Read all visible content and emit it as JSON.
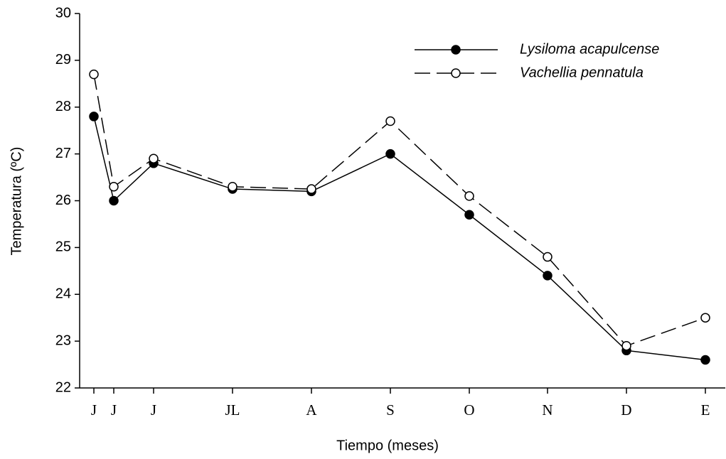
{
  "chart_data": {
    "type": "line",
    "x_label": "Tiempo (meses)",
    "y_label": "Temperatura (ºC)",
    "categories": [
      "J",
      "J",
      "J",
      "JL",
      "A",
      "S",
      "O",
      "N",
      "D",
      "E"
    ],
    "series": [
      {
        "name": "Lysiloma acapulcense",
        "color": "#000000",
        "marker_fill": "#000000",
        "dash": false,
        "values": [
          27.8,
          26.0,
          26.8,
          26.25,
          26.2,
          27.0,
          25.7,
          24.4,
          22.8,
          22.6
        ]
      },
      {
        "name": "Vachellia pennatula",
        "color": "#000000",
        "marker_fill": "#ffffff",
        "dash": true,
        "values": [
          28.7,
          26.3,
          26.9,
          26.3,
          26.25,
          27.7,
          26.1,
          24.8,
          22.9,
          23.5
        ]
      }
    ],
    "ylim": [
      22,
      30
    ],
    "yticks": [
      22,
      23,
      24,
      25,
      26,
      27,
      28,
      29,
      30
    ],
    "grid": false,
    "legend": "upper right"
  }
}
